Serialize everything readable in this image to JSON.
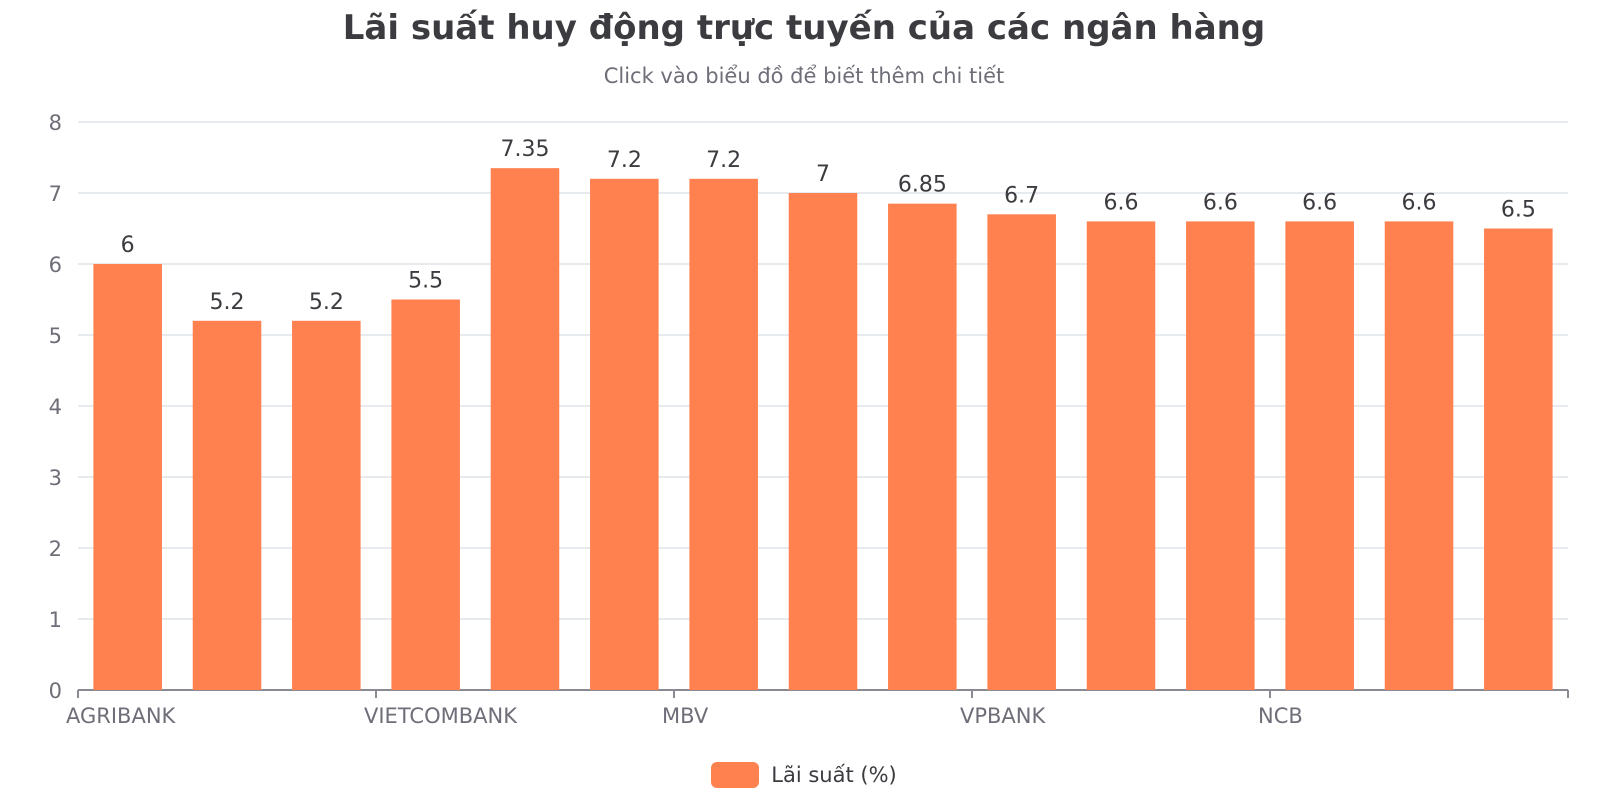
{
  "chart_data": {
    "type": "bar",
    "title": "Lãi suất huy động trực tuyến của các ngân hàng",
    "subtitle": "Click vào biểu đồ để biết thêm chi tiết",
    "xlabel": "",
    "ylabel": "",
    "ylim": [
      0,
      8
    ],
    "yticks": [
      "0",
      "1",
      "2",
      "3",
      "4",
      "5",
      "6",
      "7",
      "8"
    ],
    "grid": true,
    "legend_position": "bottom-center",
    "x_tick_labels": [
      {
        "index": 0,
        "label": "AGRIBANK"
      },
      {
        "index": 3,
        "label": "VIETCOMBANK"
      },
      {
        "index": 6,
        "label": "MBV"
      },
      {
        "index": 9,
        "label": "VPBANK"
      },
      {
        "index": 12,
        "label": "NCB"
      }
    ],
    "series": [
      {
        "name": "Lãi suất (%)",
        "color": "#ff8150",
        "values": [
          6,
          5.2,
          5.2,
          5.5,
          7.35,
          7.2,
          7.2,
          7,
          6.85,
          6.7,
          6.6,
          6.6,
          6.6,
          6.6,
          6.5
        ],
        "data_labels": [
          "6",
          "5.2",
          "5.2",
          "5.5",
          "7.35",
          "7.2",
          "7.2",
          "7",
          "6.85",
          "6.7",
          "6.6",
          "6.6",
          "6.6",
          "6.6",
          "6.5"
        ]
      }
    ]
  },
  "colors": {
    "bar": "#ff8150",
    "grid": "#dfe3ea",
    "axis": "#8a8a94",
    "tick_text": "#6e6e78",
    "label_text": "#3b3b40"
  }
}
